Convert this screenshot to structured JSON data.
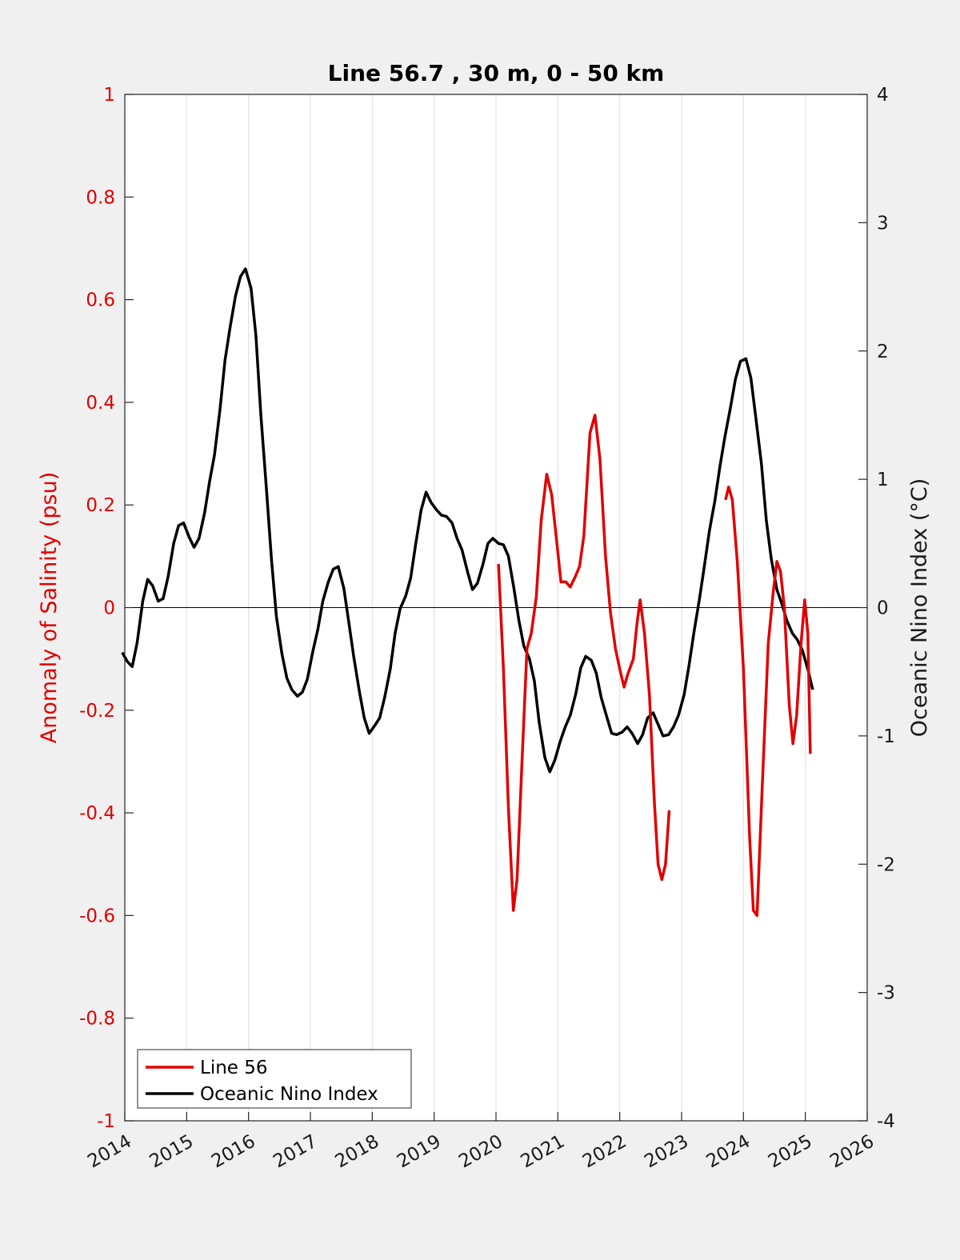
{
  "chart_data": {
    "type": "line",
    "title": "Line 56.7 , 30 m, 0 - 50 km",
    "xlabel": "",
    "ylabel_left": "Anomaly of Salinity (psu)",
    "ylabel_right": "Oceanic Nino Index (°C)",
    "xlim": [
      2014,
      2026
    ],
    "ylim_left": [
      -1,
      1
    ],
    "ylim_right": [
      -4,
      4
    ],
    "x_ticks": [
      "2014",
      "2015",
      "2016",
      "2017",
      "2018",
      "2019",
      "2020",
      "2021",
      "2022",
      "2023",
      "2024",
      "2025",
      "2026"
    ],
    "y_ticks_left": [
      "1",
      "0.8",
      "0.6",
      "0.4",
      "0.2",
      "0",
      "-0.2",
      "-0.4",
      "-0.6",
      "-0.8",
      "-1"
    ],
    "y_ticks_right": [
      "4",
      "3",
      "2",
      "1",
      "0",
      "-1",
      "-2",
      "-3",
      "-4"
    ],
    "grid": "vertical",
    "legend_position": "bottom-left",
    "series": [
      {
        "name": "Line 56",
        "color": "#e00000",
        "axis": "left",
        "segments": [
          [
            [
              2020.04,
              0.085
            ],
            [
              2020.12,
              -0.12
            ],
            [
              2020.2,
              -0.39
            ],
            [
              2020.28,
              -0.59
            ],
            [
              2020.34,
              -0.53
            ],
            [
              2020.42,
              -0.3
            ],
            [
              2020.5,
              -0.08
            ],
            [
              2020.57,
              -0.05
            ],
            [
              2020.65,
              0.02
            ],
            [
              2020.73,
              0.17
            ],
            [
              2020.82,
              0.26
            ],
            [
              2020.9,
              0.22
            ],
            [
              2020.98,
              0.13
            ],
            [
              2021.05,
              0.05
            ],
            [
              2021.13,
              0.05
            ],
            [
              2021.2,
              0.04
            ],
            [
              2021.28,
              0.06
            ],
            [
              2021.35,
              0.08
            ],
            [
              2021.42,
              0.14
            ],
            [
              2021.52,
              0.34
            ],
            [
              2021.6,
              0.375
            ],
            [
              2021.68,
              0.29
            ],
            [
              2021.77,
              0.1
            ],
            [
              2021.85,
              -0.01
            ],
            [
              2021.93,
              -0.08
            ],
            [
              2022.0,
              -0.12
            ],
            [
              2022.07,
              -0.155
            ],
            [
              2022.13,
              -0.13
            ],
            [
              2022.22,
              -0.1
            ],
            [
              2022.28,
              -0.03
            ],
            [
              2022.33,
              0.015
            ],
            [
              2022.4,
              -0.05
            ],
            [
              2022.48,
              -0.17
            ],
            [
              2022.56,
              -0.38
            ],
            [
              2022.62,
              -0.5
            ],
            [
              2022.68,
              -0.53
            ],
            [
              2022.74,
              -0.5
            ],
            [
              2022.8,
              -0.395
            ]
          ],
          [
            [
              2023.71,
              0.21
            ],
            [
              2023.76,
              0.235
            ],
            [
              2023.82,
              0.21
            ],
            [
              2023.9,
              0.09
            ],
            [
              2024.0,
              -0.12
            ],
            [
              2024.1,
              -0.45
            ],
            [
              2024.16,
              -0.59
            ],
            [
              2024.22,
              -0.6
            ],
            [
              2024.3,
              -0.36
            ],
            [
              2024.4,
              -0.07
            ],
            [
              2024.48,
              0.03
            ],
            [
              2024.54,
              0.09
            ],
            [
              2024.6,
              0.07
            ],
            [
              2024.66,
              0.0
            ],
            [
              2024.74,
              -0.19
            ],
            [
              2024.8,
              -0.265
            ],
            [
              2024.86,
              -0.21
            ],
            [
              2024.93,
              -0.07
            ],
            [
              2024.99,
              0.015
            ],
            [
              2025.04,
              -0.05
            ],
            [
              2025.08,
              -0.285
            ]
          ]
        ]
      },
      {
        "name": "Oceanic Nino Index",
        "color": "#000000",
        "axis": "right",
        "values": [
          [
            2013.96,
            -0.35
          ],
          [
            2014.04,
            -0.42
          ],
          [
            2014.12,
            -0.46
          ],
          [
            2014.2,
            -0.27
          ],
          [
            2014.29,
            0.05
          ],
          [
            2014.37,
            0.22
          ],
          [
            2014.45,
            0.17
          ],
          [
            2014.54,
            0.05
          ],
          [
            2014.62,
            0.07
          ],
          [
            2014.7,
            0.24
          ],
          [
            2014.79,
            0.5
          ],
          [
            2014.87,
            0.64
          ],
          [
            2014.95,
            0.66
          ],
          [
            2015.04,
            0.55
          ],
          [
            2015.12,
            0.47
          ],
          [
            2015.2,
            0.54
          ],
          [
            2015.29,
            0.74
          ],
          [
            2015.37,
            0.98
          ],
          [
            2015.45,
            1.19
          ],
          [
            2015.54,
            1.55
          ],
          [
            2015.62,
            1.93
          ],
          [
            2015.7,
            2.18
          ],
          [
            2015.79,
            2.43
          ],
          [
            2015.87,
            2.58
          ],
          [
            2015.95,
            2.64
          ],
          [
            2016.04,
            2.49
          ],
          [
            2016.12,
            2.12
          ],
          [
            2016.2,
            1.5
          ],
          [
            2016.29,
            0.92
          ],
          [
            2016.37,
            0.38
          ],
          [
            2016.45,
            -0.07
          ],
          [
            2016.54,
            -0.36
          ],
          [
            2016.62,
            -0.55
          ],
          [
            2016.7,
            -0.64
          ],
          [
            2016.79,
            -0.69
          ],
          [
            2016.87,
            -0.66
          ],
          [
            2016.95,
            -0.56
          ],
          [
            2017.04,
            -0.34
          ],
          [
            2017.12,
            -0.17
          ],
          [
            2017.2,
            0.05
          ],
          [
            2017.29,
            0.2
          ],
          [
            2017.37,
            0.3
          ],
          [
            2017.45,
            0.32
          ],
          [
            2017.54,
            0.15
          ],
          [
            2017.62,
            -0.11
          ],
          [
            2017.7,
            -0.38
          ],
          [
            2017.79,
            -0.65
          ],
          [
            2017.87,
            -0.86
          ],
          [
            2017.95,
            -0.98
          ],
          [
            2018.04,
            -0.92
          ],
          [
            2018.12,
            -0.86
          ],
          [
            2018.2,
            -0.7
          ],
          [
            2018.29,
            -0.48
          ],
          [
            2018.37,
            -0.2
          ],
          [
            2018.45,
            -0.01
          ],
          [
            2018.54,
            0.09
          ],
          [
            2018.62,
            0.23
          ],
          [
            2018.7,
            0.49
          ],
          [
            2018.79,
            0.76
          ],
          [
            2018.87,
            0.9
          ],
          [
            2018.95,
            0.82
          ],
          [
            2019.04,
            0.76
          ],
          [
            2019.12,
            0.72
          ],
          [
            2019.2,
            0.71
          ],
          [
            2019.29,
            0.66
          ],
          [
            2019.37,
            0.54
          ],
          [
            2019.45,
            0.45
          ],
          [
            2019.54,
            0.28
          ],
          [
            2019.62,
            0.14
          ],
          [
            2019.7,
            0.19
          ],
          [
            2019.79,
            0.34
          ],
          [
            2019.87,
            0.5
          ],
          [
            2019.95,
            0.54
          ],
          [
            2020.04,
            0.5
          ],
          [
            2020.12,
            0.49
          ],
          [
            2020.2,
            0.4
          ],
          [
            2020.29,
            0.15
          ],
          [
            2020.37,
            -0.1
          ],
          [
            2020.45,
            -0.3
          ],
          [
            2020.54,
            -0.4
          ],
          [
            2020.62,
            -0.57
          ],
          [
            2020.7,
            -0.9
          ],
          [
            2020.79,
            -1.17
          ],
          [
            2020.87,
            -1.28
          ],
          [
            2020.95,
            -1.19
          ],
          [
            2021.04,
            -1.04
          ],
          [
            2021.12,
            -0.93
          ],
          [
            2021.2,
            -0.84
          ],
          [
            2021.29,
            -0.67
          ],
          [
            2021.37,
            -0.47
          ],
          [
            2021.45,
            -0.38
          ],
          [
            2021.54,
            -0.41
          ],
          [
            2021.62,
            -0.51
          ],
          [
            2021.7,
            -0.7
          ],
          [
            2021.79,
            -0.85
          ],
          [
            2021.87,
            -0.98
          ],
          [
            2021.95,
            -0.99
          ],
          [
            2022.04,
            -0.97
          ],
          [
            2022.12,
            -0.93
          ],
          [
            2022.2,
            -0.98
          ],
          [
            2022.29,
            -1.06
          ],
          [
            2022.37,
            -0.99
          ],
          [
            2022.45,
            -0.86
          ],
          [
            2022.54,
            -0.82
          ],
          [
            2022.62,
            -0.91
          ],
          [
            2022.7,
            -1.0
          ],
          [
            2022.79,
            -0.99
          ],
          [
            2022.87,
            -0.93
          ],
          [
            2022.95,
            -0.84
          ],
          [
            2023.04,
            -0.68
          ],
          [
            2023.12,
            -0.45
          ],
          [
            2023.2,
            -0.19
          ],
          [
            2023.29,
            0.07
          ],
          [
            2023.37,
            0.33
          ],
          [
            2023.45,
            0.6
          ],
          [
            2023.54,
            0.84
          ],
          [
            2023.62,
            1.1
          ],
          [
            2023.7,
            1.33
          ],
          [
            2023.79,
            1.56
          ],
          [
            2023.87,
            1.78
          ],
          [
            2023.95,
            1.92
          ],
          [
            2024.04,
            1.94
          ],
          [
            2024.12,
            1.79
          ],
          [
            2024.2,
            1.48
          ],
          [
            2024.29,
            1.12
          ],
          [
            2024.37,
            0.68
          ],
          [
            2024.45,
            0.38
          ],
          [
            2024.54,
            0.14
          ],
          [
            2024.62,
            0.03
          ],
          [
            2024.7,
            -0.1
          ],
          [
            2024.79,
            -0.2
          ],
          [
            2024.87,
            -0.25
          ],
          [
            2024.95,
            -0.33
          ],
          [
            2025.04,
            -0.48
          ],
          [
            2025.12,
            -0.64
          ]
        ]
      }
    ]
  }
}
